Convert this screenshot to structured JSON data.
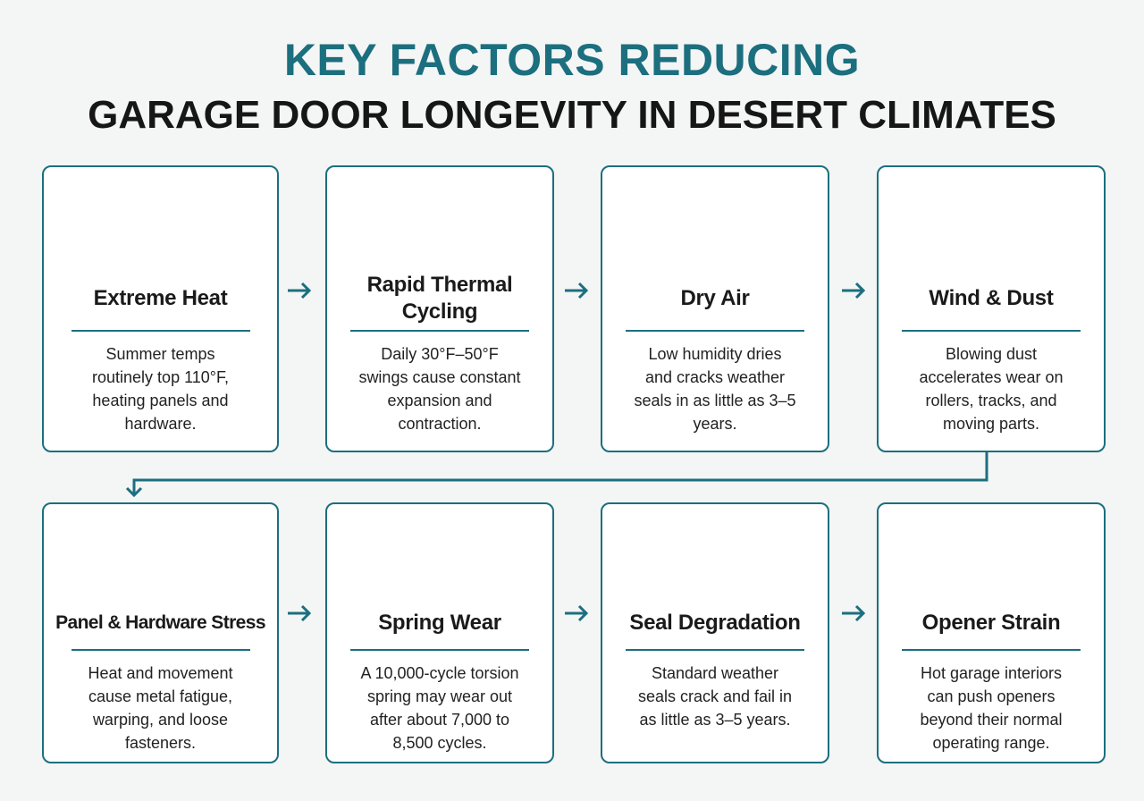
{
  "header": {
    "title_line1": "KEY FACTORS REDUCING",
    "title_line2": "GARAGE DOOR LONGEVITY IN DESERT CLIMATES"
  },
  "cards": [
    {
      "title": "Extreme Heat",
      "body": "Summer temps routinely top 110°F, heating panels and hardware."
    },
    {
      "title": "Rapid Thermal Cycling",
      "body": "Daily 30°F–50°F swings cause constant expansion and contraction."
    },
    {
      "title": "Dry Air",
      "body": "Low humidity dries and cracks weather seals in as little as 3–5 years."
    },
    {
      "title": "Wind & Dust",
      "body": "Blowing dust accelerates wear on rollers, tracks, and moving parts."
    },
    {
      "title": "Panel & Hardware Stress",
      "body": "Heat and movement cause metal fatigue, warping, and loose fasteners."
    },
    {
      "title": "Spring Wear",
      "body": "A 10,000-cycle torsion spring may wear out after about 7,000 to 8,500 cycles."
    },
    {
      "title": "Seal Degradation",
      "body": "Standard weather seals crack and fail in as little as 3–5 years."
    },
    {
      "title": "Opener Strain",
      "body": "Hot garage interiors can push openers beyond their normal operating range."
    }
  ]
}
